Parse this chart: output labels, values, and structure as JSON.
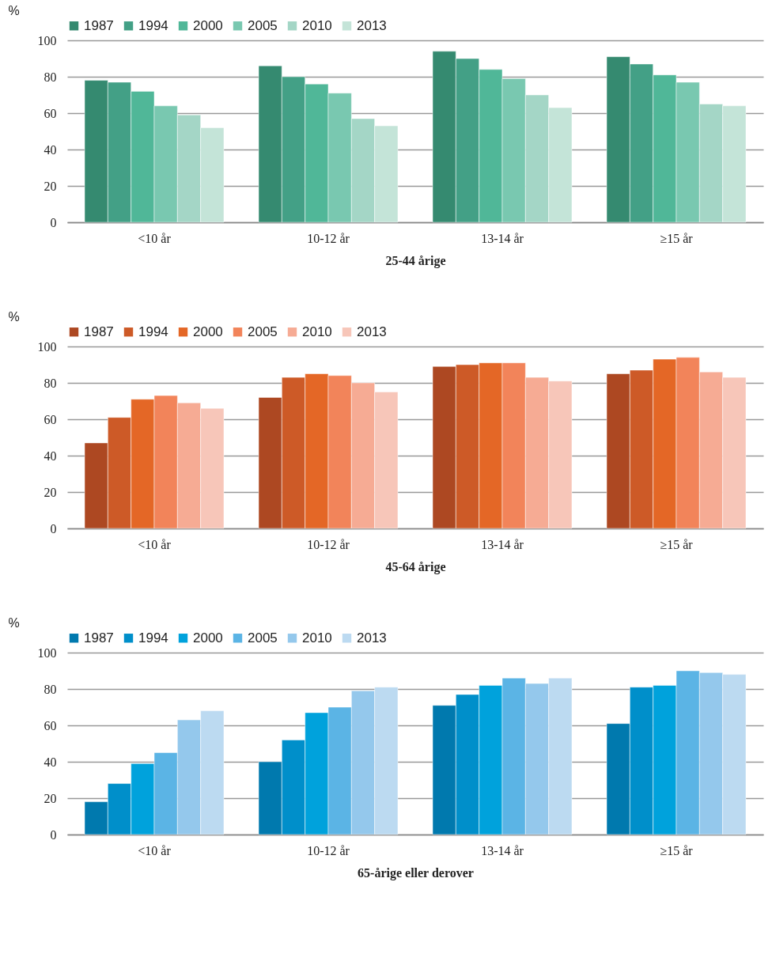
{
  "chart_data": [
    {
      "type": "bar",
      "xlabel": "25-44 årige",
      "ylabel": "%",
      "categories": [
        "<10 år",
        "10-12 år",
        "13-14 år",
        "≥15 år"
      ],
      "ylim": [
        0,
        100
      ],
      "yticks": [
        0,
        20,
        40,
        60,
        80,
        100
      ],
      "grid": "y",
      "legend": "top",
      "series": [
        {
          "name": "1987",
          "color": "#358a70",
          "values": [
            78,
            86,
            94,
            91
          ]
        },
        {
          "name": "1994",
          "color": "#43a086",
          "values": [
            77,
            80,
            90,
            87
          ]
        },
        {
          "name": "2000",
          "color": "#50b798",
          "values": [
            72,
            76,
            84,
            81
          ]
        },
        {
          "name": "2005",
          "color": "#79c8b0",
          "values": [
            64,
            71,
            79,
            77
          ]
        },
        {
          "name": "2010",
          "color": "#a4d6c6",
          "values": [
            59,
            57,
            70,
            65
          ]
        },
        {
          "name": "2013",
          "color": "#c4e4d8",
          "values": [
            52,
            53,
            63,
            64
          ]
        }
      ]
    },
    {
      "type": "bar",
      "xlabel": "45-64 årige",
      "ylabel": "%",
      "categories": [
        "<10 år",
        "10-12 år",
        "13-14 år",
        "≥15 år"
      ],
      "ylim": [
        0,
        100
      ],
      "yticks": [
        0,
        20,
        40,
        60,
        80,
        100
      ],
      "grid": "y",
      "legend": "top",
      "series": [
        {
          "name": "1987",
          "color": "#ad4822",
          "values": [
            47,
            72,
            89,
            85
          ]
        },
        {
          "name": "1994",
          "color": "#cd5a27",
          "values": [
            61,
            83,
            90,
            87
          ]
        },
        {
          "name": "2000",
          "color": "#e46726",
          "values": [
            71,
            85,
            91,
            93
          ]
        },
        {
          "name": "2005",
          "color": "#f2845a",
          "values": [
            73,
            84,
            91,
            94
          ]
        },
        {
          "name": "2010",
          "color": "#f6ab94",
          "values": [
            69,
            80,
            83,
            86
          ]
        },
        {
          "name": "2013",
          "color": "#f7c6b9",
          "values": [
            66,
            75,
            81,
            83
          ]
        }
      ]
    },
    {
      "type": "bar",
      "xlabel": "65-årige eller derover",
      "ylabel": "%",
      "categories": [
        "<10 år",
        "10-12 år",
        "13-14 år",
        "≥15 år"
      ],
      "ylim": [
        0,
        100
      ],
      "yticks": [
        0,
        20,
        40,
        60,
        80,
        100
      ],
      "grid": "y",
      "legend": "top",
      "series": [
        {
          "name": "1987",
          "color": "#0079ae",
          "values": [
            18,
            40,
            71,
            61
          ]
        },
        {
          "name": "1994",
          "color": "#008fca",
          "values": [
            28,
            52,
            77,
            81
          ]
        },
        {
          "name": "2000",
          "color": "#00a2dc",
          "values": [
            39,
            67,
            82,
            82
          ]
        },
        {
          "name": "2005",
          "color": "#5bb4e5",
          "values": [
            45,
            70,
            86,
            90
          ]
        },
        {
          "name": "2010",
          "color": "#94c8ec",
          "values": [
            63,
            79,
            83,
            89
          ]
        },
        {
          "name": "2013",
          "color": "#bcdaf1",
          "values": [
            68,
            81,
            86,
            88
          ]
        }
      ]
    }
  ]
}
